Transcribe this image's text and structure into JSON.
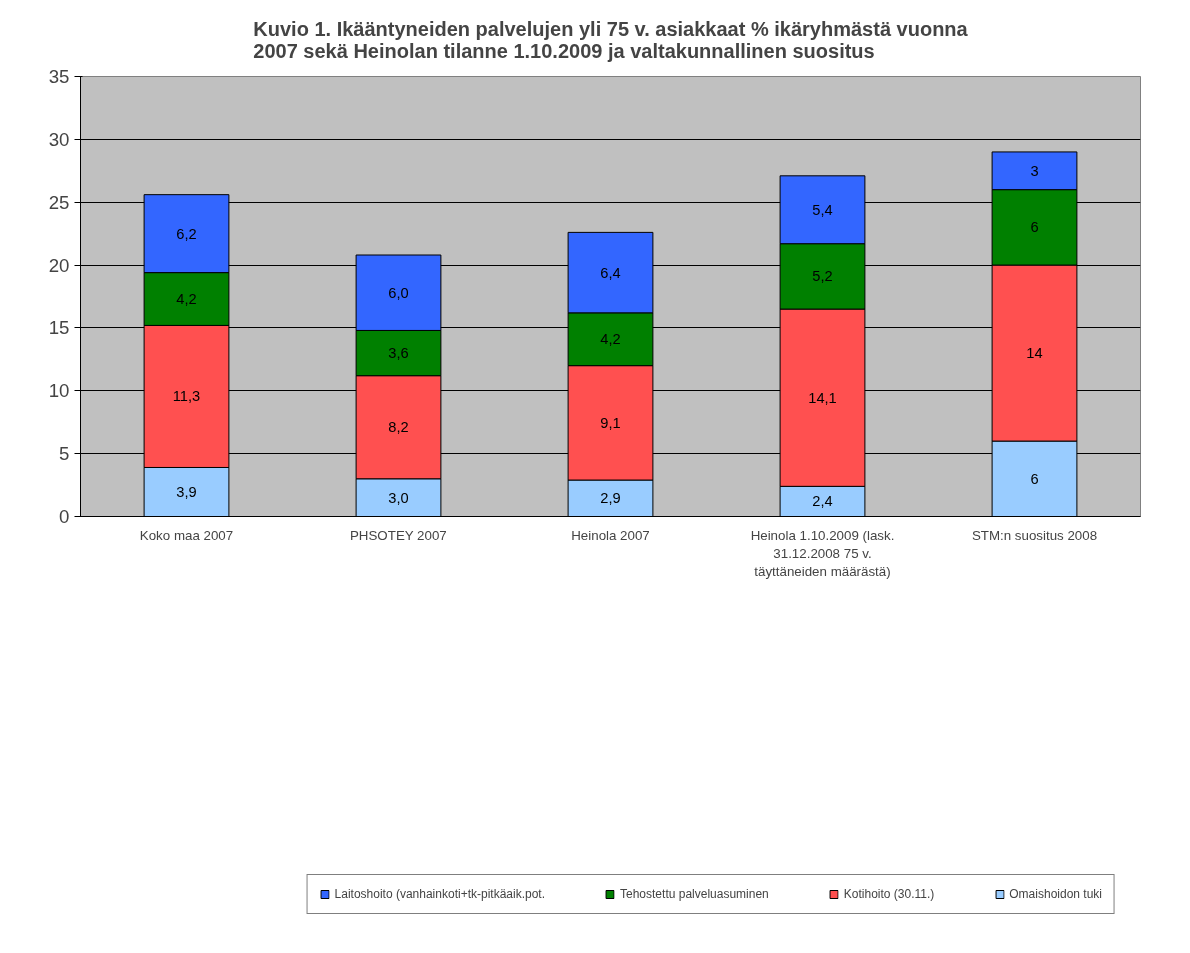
{
  "chart_data": {
    "type": "bar",
    "stacked": true,
    "title": "Kuvio 1. Ikääntyneiden palvelujen yli 75 v. asiakkaat % ikäryhmästä vuonna 2007 sekä Heinolan tilanne 1.10.2009 ja valtakunnallinen suositus",
    "categories": [
      "Koko maa 2007",
      "PHSOTEY 2007",
      "Heinola 2007",
      "Heinola 1.10.2009 (lask. 31.12.2008 75 v. täyttäneiden määrästä)",
      "STM:n suositus 2008"
    ],
    "series": [
      {
        "name": "Omaishoidon tuki",
        "color": "#99ccff",
        "values": [
          3.9,
          3.0,
          2.9,
          2.4,
          6
        ],
        "value_labels": [
          "3,9",
          "3,0",
          "2,9",
          "2,4",
          "6"
        ]
      },
      {
        "name": "Kotihoito (30.11.)",
        "color": "#ff5050",
        "values": [
          11.3,
          8.2,
          9.1,
          14.1,
          14
        ],
        "value_labels": [
          "11,3",
          "8,2",
          "9,1",
          "14,1",
          "14"
        ]
      },
      {
        "name": "Tehostettu palveluasuminen",
        "color": "#008000",
        "values": [
          4.2,
          3.6,
          4.2,
          5.2,
          6
        ],
        "value_labels": [
          "4,2",
          "3,6",
          "4,2",
          "5,2",
          "6"
        ]
      },
      {
        "name": "Laitoshoito (vanhainkoti+tk-pitkäaik.pot.",
        "color": "#3366ff",
        "values": [
          6.2,
          6.0,
          6.4,
          5.4,
          3
        ],
        "value_labels": [
          "6,2",
          "6,0",
          "6,4",
          "5,4",
          "3"
        ]
      }
    ],
    "ylim": [
      0,
      35
    ],
    "yticks": [
      0,
      5,
      10,
      15,
      20,
      25,
      30,
      35
    ],
    "grid": "y",
    "legend": "bottom"
  }
}
